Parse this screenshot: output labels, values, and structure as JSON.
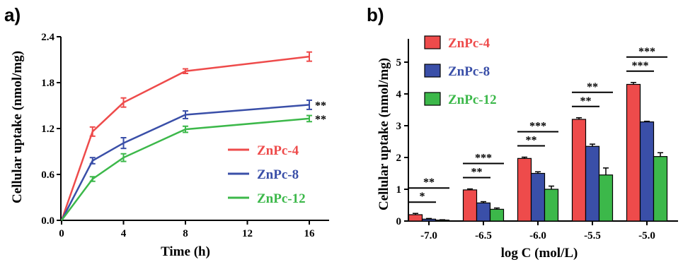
{
  "colors": {
    "ZnPc-4": "#ee4b4b",
    "ZnPc-8": "#3a4fa8",
    "ZnPc-12": "#3cb84a"
  },
  "chart_data": [
    {
      "panel": "a)",
      "type": "line",
      "xlabel": "Time (h)",
      "ylabel": "Cellular uptake (nmol/mg)",
      "xlim": [
        0,
        18
      ],
      "ylim": [
        0,
        2.4
      ],
      "xticks": [
        "0",
        "4",
        "8",
        "12",
        "16"
      ],
      "yticks": [
        "0.0",
        "0.6",
        "1.2",
        "1.8",
        "2.4"
      ],
      "legend_position": "right",
      "x": [
        0,
        2,
        4,
        8,
        16
      ],
      "series": [
        {
          "name": "ZnPc-4",
          "values": [
            0,
            1.16,
            1.54,
            1.95,
            2.14
          ],
          "errors": [
            0,
            0.06,
            0.06,
            0.03,
            0.06
          ],
          "annotation": ""
        },
        {
          "name": "ZnPc-8",
          "values": [
            0,
            0.78,
            1.01,
            1.38,
            1.51
          ],
          "errors": [
            0,
            0.04,
            0.07,
            0.05,
            0.06
          ],
          "annotation": "**"
        },
        {
          "name": "ZnPc-12",
          "values": [
            0,
            0.54,
            0.82,
            1.19,
            1.33
          ],
          "errors": [
            0,
            0.03,
            0.05,
            0.04,
            0.04
          ],
          "annotation": "**"
        }
      ]
    },
    {
      "panel": "b)",
      "type": "bar",
      "xlabel": "log C (mol/L)",
      "ylabel": "Cellular uptake (nmol/mg)",
      "ylim": [
        0,
        6
      ],
      "yticks": [
        "0",
        "1",
        "2",
        "3",
        "4",
        "5"
      ],
      "categories": [
        "-7.0",
        "-6.5",
        "-6.0",
        "-5.5",
        "-5.0"
      ],
      "legend_position": "top-left",
      "series": [
        {
          "name": "ZnPc-4",
          "values": [
            0.2,
            0.98,
            1.97,
            3.2,
            4.3
          ],
          "errors": [
            0.04,
            0.03,
            0.04,
            0.05,
            0.06
          ]
        },
        {
          "name": "ZnPc-8",
          "values": [
            0.06,
            0.57,
            1.5,
            2.35,
            3.12
          ],
          "errors": [
            0.02,
            0.04,
            0.05,
            0.07,
            0.02
          ]
        },
        {
          "name": "ZnPc-12",
          "values": [
            0.03,
            0.37,
            1.0,
            1.45,
            2.03
          ],
          "errors": [
            0.01,
            0.04,
            0.1,
            0.22,
            0.12
          ]
        }
      ],
      "significance": [
        {
          "category": "-7.0",
          "labels": [
            "*",
            "**"
          ]
        },
        {
          "category": "-6.5",
          "labels": [
            "**",
            "***"
          ]
        },
        {
          "category": "-6.0",
          "labels": [
            "**",
            "***"
          ]
        },
        {
          "category": "-5.5",
          "labels": [
            "**",
            "**"
          ]
        },
        {
          "category": "-5.0",
          "labels": [
            "***",
            "***"
          ]
        }
      ]
    }
  ]
}
